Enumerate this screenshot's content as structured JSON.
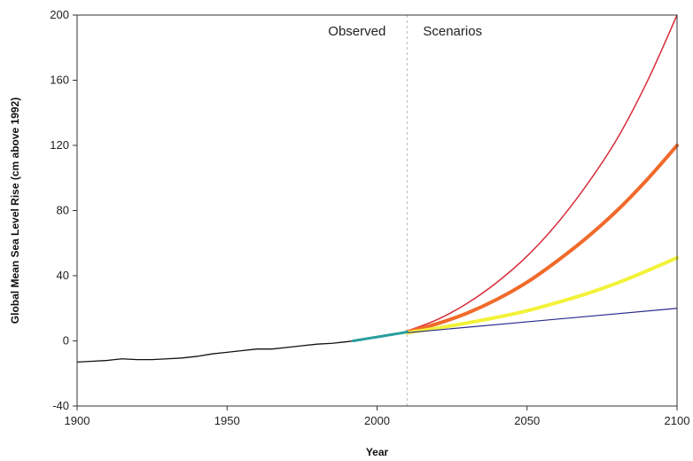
{
  "chart_data": {
    "type": "line",
    "title": "",
    "xlabel": "Year",
    "ylabel": "Global Mean Sea Level Rise (cm above 1992)",
    "xlim": [
      1900,
      2100
    ],
    "ylim": [
      -40,
      200
    ],
    "xticks": [
      1900,
      1950,
      2000,
      2050,
      2100
    ],
    "yticks": [
      -40,
      0,
      40,
      80,
      120,
      160,
      200
    ],
    "grid": false,
    "legend": "none",
    "divider_year": 2010,
    "annotations": [
      {
        "text": "Observed",
        "side": "left"
      },
      {
        "text": "Scenarios",
        "side": "right"
      }
    ],
    "observed": {
      "color": "#111111",
      "x": [
        1900,
        1905,
        1910,
        1915,
        1920,
        1925,
        1930,
        1935,
        1940,
        1945,
        1950,
        1955,
        1960,
        1965,
        1970,
        1975,
        1980,
        1985,
        1990,
        1992
      ],
      "y": [
        -13,
        -12.5,
        -12,
        -11,
        -11.5,
        -11.5,
        -11,
        -10.5,
        -9.5,
        -8,
        -7,
        -6,
        -5,
        -5,
        -4,
        -3,
        -2,
        -1.5,
        -0.5,
        0
      ]
    },
    "observed_satellite": {
      "color": "#2a9d9d",
      "x": [
        1992,
        1996,
        2000,
        2004,
        2008,
        2010
      ],
      "y": [
        0,
        1.2,
        2.4,
        3.6,
        4.8,
        5.5
      ]
    },
    "series": [
      {
        "color": "#d62d3a",
        "width": 1.5,
        "x": [
          2010,
          2020,
          2030,
          2040,
          2050,
          2060,
          2070,
          2080,
          2090,
          2100
        ],
        "y": [
          6,
          13,
          23,
          36,
          52,
          72,
          96,
          124,
          159,
          200
        ]
      },
      {
        "color": "#f06a2a",
        "width": 4,
        "x": [
          2010,
          2020,
          2030,
          2040,
          2050,
          2060,
          2070,
          2080,
          2090,
          2100
        ],
        "y": [
          5.5,
          10.5,
          17,
          25.5,
          36,
          49,
          63.5,
          80,
          99,
          120
        ]
      },
      {
        "color": "#f2f23a",
        "width": 4,
        "x": [
          2010,
          2020,
          2030,
          2040,
          2050,
          2060,
          2070,
          2080,
          2090,
          2100
        ],
        "y": [
          5,
          7.8,
          11,
          14.5,
          18.5,
          23.5,
          29,
          35.5,
          43,
          51
        ]
      },
      {
        "color": "#2b2b8f",
        "width": 1.2,
        "x": [
          2010,
          2100
        ],
        "y": [
          5,
          20
        ]
      }
    ]
  }
}
